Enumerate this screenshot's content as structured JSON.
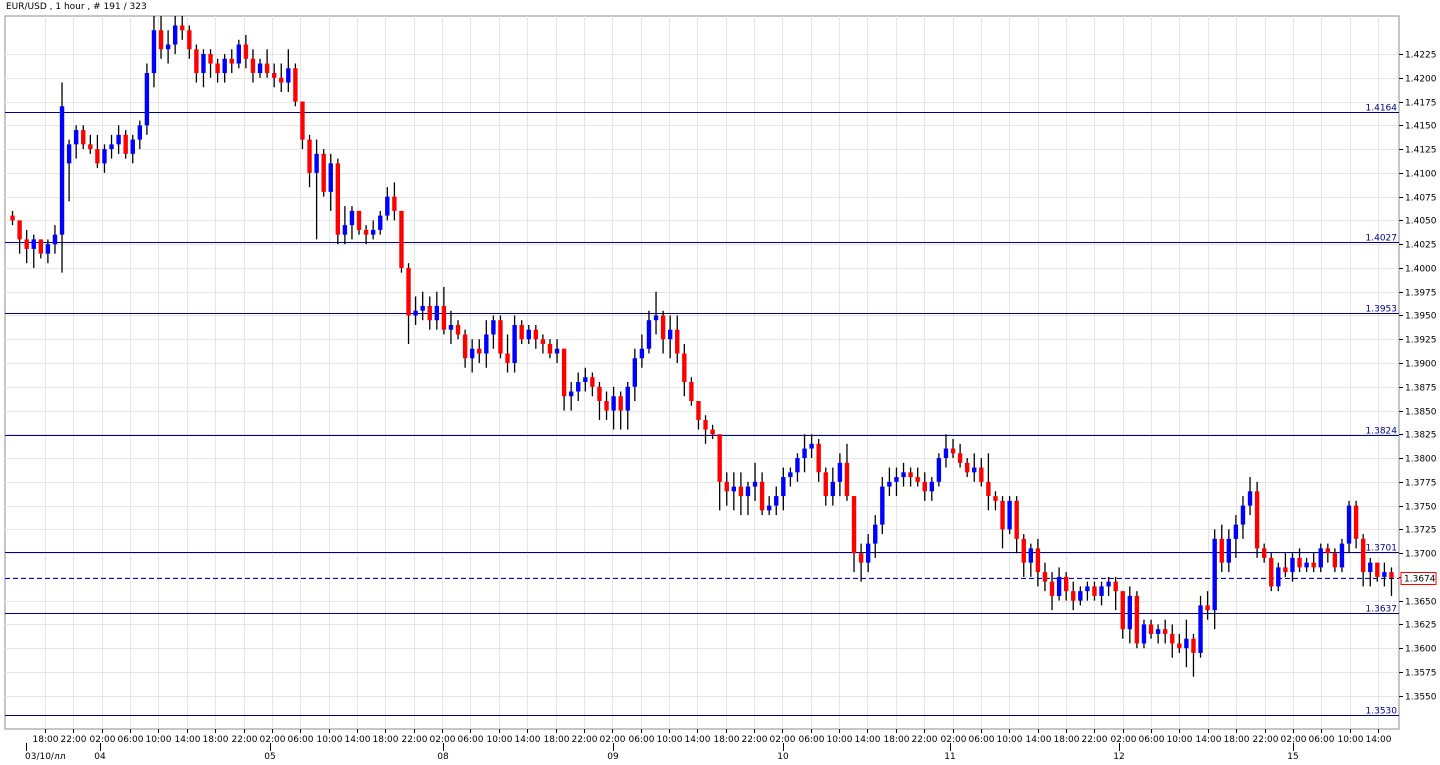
{
  "header": {
    "title": "EUR/USD , 1 hour , # 191 / 323"
  },
  "colors": {
    "background": "#ffffff",
    "grid": "#e6e6e6",
    "frame": "#8c8c8c",
    "bull": "#0000ff",
    "bear": "#ff0000",
    "wick": "#000000",
    "levels": "#00008b",
    "current_line": "#0000b4",
    "current_label_border": "#ff0000"
  },
  "chart_data": {
    "type": "candlestick",
    "symbol": "EUR/USD",
    "timeframe": "1 hour",
    "ylim": [
      1.3515,
      1.4265
    ],
    "y_ticks": [
      "1.4225",
      "1.4200",
      "1.4175",
      "1.4150",
      "1.4125",
      "1.4100",
      "1.4075",
      "1.4050",
      "1.4025",
      "1.4000",
      "1.3975",
      "1.3950",
      "1.3925",
      "1.3900",
      "1.3875",
      "1.3850",
      "1.3825",
      "1.3800",
      "1.3775",
      "1.3750",
      "1.3725",
      "1.3700",
      "1.3675",
      "1.3650",
      "1.3625",
      "1.3600",
      "1.3575",
      "1.3550"
    ],
    "x_time_labels": [
      "18:00",
      "22:00",
      "02:00",
      "06:00",
      "10:00",
      "14:00",
      "18:00",
      "22:00",
      "02:00",
      "06:00",
      "10:00",
      "14:00",
      "18:00",
      "22:00",
      "02:00",
      "06:00",
      "10:00",
      "14:00",
      "18:00",
      "22:00",
      "02:00",
      "06:00",
      "10:00",
      "14:00",
      "18:00",
      "22:00",
      "02:00",
      "06:00",
      "10:00",
      "14:00",
      "18:00",
      "22:00",
      "02:00",
      "06:00",
      "10:00",
      "14:00",
      "18:00",
      "22:00",
      "02:00",
      "06:00",
      "10:00",
      "14:00",
      "18:00",
      "22:00",
      "02:00",
      "06:00",
      "10:00",
      "14:00"
    ],
    "x_date_labels": [
      "03/10/лл",
      "04",
      "05",
      "08",
      "09",
      "10",
      "11",
      "12",
      "15"
    ],
    "horizontal_levels": [
      "1.4164",
      "1.4027",
      "1.3953",
      "1.3824",
      "1.3701",
      "1.3637",
      "1.3530"
    ],
    "current_price": "1.3674",
    "candles": [
      [
        1.4055,
        1.406,
        1.4045,
        1.405
      ],
      [
        1.405,
        1.405,
        1.4015,
        1.403
      ],
      [
        1.403,
        1.404,
        1.4005,
        1.402
      ],
      [
        1.402,
        1.4035,
        1.4,
        1.403
      ],
      [
        1.403,
        1.403,
        1.401,
        1.4015
      ],
      [
        1.4015,
        1.403,
        1.4005,
        1.4025
      ],
      [
        1.4025,
        1.4045,
        1.4015,
        1.4035
      ],
      [
        1.4035,
        1.4195,
        1.3995,
        1.417
      ],
      [
        1.411,
        1.4135,
        1.407,
        1.413
      ],
      [
        1.413,
        1.415,
        1.4115,
        1.4145
      ],
      [
        1.4145,
        1.415,
        1.4125,
        1.413
      ],
      [
        1.413,
        1.414,
        1.412,
        1.4125
      ],
      [
        1.4125,
        1.414,
        1.4105,
        1.411
      ],
      [
        1.411,
        1.413,
        1.41,
        1.4125
      ],
      [
        1.4125,
        1.414,
        1.4115,
        1.413
      ],
      [
        1.413,
        1.415,
        1.412,
        1.414
      ],
      [
        1.414,
        1.4145,
        1.4115,
        1.412
      ],
      [
        1.412,
        1.414,
        1.411,
        1.4135
      ],
      [
        1.4135,
        1.4155,
        1.4125,
        1.415
      ],
      [
        1.415,
        1.4215,
        1.414,
        1.4205
      ],
      [
        1.4205,
        1.4265,
        1.419,
        1.425
      ],
      [
        1.425,
        1.4265,
        1.422,
        1.423
      ],
      [
        1.423,
        1.425,
        1.4215,
        1.4235
      ],
      [
        1.4235,
        1.4265,
        1.4225,
        1.4255
      ],
      [
        1.4255,
        1.4265,
        1.424,
        1.425
      ],
      [
        1.425,
        1.4255,
        1.422,
        1.423
      ],
      [
        1.423,
        1.4235,
        1.4195,
        1.4205
      ],
      [
        1.4205,
        1.423,
        1.419,
        1.4225
      ],
      [
        1.4225,
        1.423,
        1.42,
        1.4215
      ],
      [
        1.4215,
        1.422,
        1.4195,
        1.4205
      ],
      [
        1.4205,
        1.4225,
        1.4195,
        1.422
      ],
      [
        1.422,
        1.423,
        1.4205,
        1.4215
      ],
      [
        1.4215,
        1.424,
        1.421,
        1.4235
      ],
      [
        1.4235,
        1.4245,
        1.421,
        1.422
      ],
      [
        1.422,
        1.423,
        1.4195,
        1.4205
      ],
      [
        1.4205,
        1.422,
        1.42,
        1.4215
      ],
      [
        1.4215,
        1.423,
        1.42,
        1.4205
      ],
      [
        1.4205,
        1.4215,
        1.419,
        1.42
      ],
      [
        1.42,
        1.4215,
        1.4185,
        1.4195
      ],
      [
        1.4195,
        1.423,
        1.4185,
        1.421
      ],
      [
        1.421,
        1.4215,
        1.417,
        1.4175
      ],
      [
        1.4175,
        1.4175,
        1.4125,
        1.4135
      ],
      [
        1.4135,
        1.414,
        1.4085,
        1.41
      ],
      [
        1.41,
        1.4135,
        1.403,
        1.412
      ],
      [
        1.412,
        1.4125,
        1.4075,
        1.408
      ],
      [
        1.408,
        1.412,
        1.406,
        1.411
      ],
      [
        1.411,
        1.4115,
        1.4025,
        1.4035
      ],
      [
        1.4035,
        1.4065,
        1.4025,
        1.4045
      ],
      [
        1.4045,
        1.4065,
        1.403,
        1.406
      ],
      [
        1.406,
        1.406,
        1.4035,
        1.404
      ],
      [
        1.404,
        1.4045,
        1.4025,
        1.4035
      ],
      [
        1.4035,
        1.405,
        1.403,
        1.404
      ],
      [
        1.404,
        1.406,
        1.4035,
        1.4055
      ],
      [
        1.4055,
        1.4085,
        1.405,
        1.4075
      ],
      [
        1.4075,
        1.409,
        1.405,
        1.406
      ],
      [
        1.406,
        1.406,
        1.3995,
        1.4
      ],
      [
        1.4,
        1.4005,
        1.392,
        1.395
      ],
      [
        1.395,
        1.397,
        1.394,
        1.3955
      ],
      [
        1.3955,
        1.3975,
        1.3945,
        1.396
      ],
      [
        1.396,
        1.397,
        1.3935,
        1.3945
      ],
      [
        1.3945,
        1.3975,
        1.3935,
        1.396
      ],
      [
        1.396,
        1.398,
        1.393,
        1.3935
      ],
      [
        1.3935,
        1.3955,
        1.392,
        1.394
      ],
      [
        1.394,
        1.3945,
        1.3925,
        1.393
      ],
      [
        1.393,
        1.3935,
        1.3895,
        1.3905
      ],
      [
        1.3905,
        1.3925,
        1.389,
        1.3915
      ],
      [
        1.3915,
        1.3925,
        1.39,
        1.391
      ],
      [
        1.391,
        1.3945,
        1.3895,
        1.393
      ],
      [
        1.393,
        1.395,
        1.3915,
        1.3945
      ],
      [
        1.3945,
        1.395,
        1.3905,
        1.391
      ],
      [
        1.391,
        1.393,
        1.389,
        1.39
      ],
      [
        1.39,
        1.395,
        1.389,
        1.394
      ],
      [
        1.394,
        1.3945,
        1.392,
        1.3925
      ],
      [
        1.3925,
        1.394,
        1.392,
        1.3935
      ],
      [
        1.3935,
        1.394,
        1.3915,
        1.3925
      ],
      [
        1.3925,
        1.393,
        1.391,
        1.392
      ],
      [
        1.392,
        1.3925,
        1.3905,
        1.391
      ],
      [
        1.391,
        1.3925,
        1.39,
        1.3915
      ],
      [
        1.3915,
        1.3915,
        1.385,
        1.3865
      ],
      [
        1.3865,
        1.388,
        1.385,
        1.387
      ],
      [
        1.387,
        1.389,
        1.386,
        1.388
      ],
      [
        1.388,
        1.3895,
        1.387,
        1.3885
      ],
      [
        1.3885,
        1.389,
        1.3865,
        1.3875
      ],
      [
        1.3875,
        1.388,
        1.384,
        1.386
      ],
      [
        1.386,
        1.387,
        1.384,
        1.385
      ],
      [
        1.385,
        1.3875,
        1.383,
        1.3865
      ],
      [
        1.3865,
        1.387,
        1.383,
        1.385
      ],
      [
        1.385,
        1.388,
        1.383,
        1.3875
      ],
      [
        1.3875,
        1.3915,
        1.386,
        1.3905
      ],
      [
        1.3905,
        1.393,
        1.3895,
        1.3915
      ],
      [
        1.3915,
        1.3955,
        1.391,
        1.3945
      ],
      [
        1.3945,
        1.3975,
        1.393,
        1.395
      ],
      [
        1.395,
        1.3955,
        1.391,
        1.3925
      ],
      [
        1.3925,
        1.395,
        1.3905,
        1.3935
      ],
      [
        1.3935,
        1.395,
        1.39,
        1.391
      ],
      [
        1.391,
        1.392,
        1.3865,
        1.388
      ],
      [
        1.388,
        1.3885,
        1.3855,
        1.386
      ],
      [
        1.386,
        1.386,
        1.383,
        1.384
      ],
      [
        1.384,
        1.3845,
        1.3815,
        1.383
      ],
      [
        1.383,
        1.3835,
        1.382,
        1.3825
      ],
      [
        1.3825,
        1.3825,
        1.3745,
        1.3775
      ],
      [
        1.3775,
        1.3785,
        1.375,
        1.3765
      ],
      [
        1.3765,
        1.3785,
        1.3745,
        1.377
      ],
      [
        1.377,
        1.3785,
        1.374,
        1.376
      ],
      [
        1.376,
        1.3775,
        1.374,
        1.377
      ],
      [
        1.377,
        1.3795,
        1.3755,
        1.3775
      ],
      [
        1.3775,
        1.3785,
        1.374,
        1.3745
      ],
      [
        1.3745,
        1.376,
        1.374,
        1.375
      ],
      [
        1.375,
        1.377,
        1.374,
        1.376
      ],
      [
        1.376,
        1.379,
        1.3745,
        1.378
      ],
      [
        1.378,
        1.379,
        1.377,
        1.3785
      ],
      [
        1.3785,
        1.3805,
        1.3775,
        1.38
      ],
      [
        1.38,
        1.3825,
        1.3785,
        1.381
      ],
      [
        1.381,
        1.3825,
        1.38,
        1.3815
      ],
      [
        1.3815,
        1.382,
        1.3775,
        1.3785
      ],
      [
        1.3785,
        1.379,
        1.375,
        1.376
      ],
      [
        1.376,
        1.379,
        1.375,
        1.3775
      ],
      [
        1.3775,
        1.3805,
        1.376,
        1.3795
      ],
      [
        1.3795,
        1.3815,
        1.3755,
        1.376
      ],
      [
        1.376,
        1.376,
        1.368,
        1.37
      ],
      [
        1.37,
        1.371,
        1.367,
        1.369
      ],
      [
        1.369,
        1.372,
        1.368,
        1.371
      ],
      [
        1.371,
        1.374,
        1.3695,
        1.373
      ],
      [
        1.373,
        1.378,
        1.372,
        1.377
      ],
      [
        1.377,
        1.379,
        1.376,
        1.3775
      ],
      [
        1.3775,
        1.379,
        1.376,
        1.378
      ],
      [
        1.378,
        1.3795,
        1.377,
        1.3785
      ],
      [
        1.3785,
        1.379,
        1.377,
        1.378
      ],
      [
        1.378,
        1.379,
        1.377,
        1.3775
      ],
      [
        1.3775,
        1.3785,
        1.3755,
        1.3765
      ],
      [
        1.3765,
        1.378,
        1.3755,
        1.3775
      ],
      [
        1.3775,
        1.3805,
        1.377,
        1.38
      ],
      [
        1.38,
        1.3825,
        1.379,
        1.381
      ],
      [
        1.381,
        1.382,
        1.38,
        1.3805
      ],
      [
        1.3805,
        1.3815,
        1.379,
        1.3795
      ],
      [
        1.3795,
        1.38,
        1.378,
        1.3785
      ],
      [
        1.3785,
        1.3805,
        1.3775,
        1.379
      ],
      [
        1.379,
        1.38,
        1.377,
        1.3775
      ],
      [
        1.3775,
        1.3805,
        1.3745,
        1.376
      ],
      [
        1.376,
        1.3765,
        1.3745,
        1.3755
      ],
      [
        1.3755,
        1.376,
        1.3705,
        1.3725
      ],
      [
        1.3725,
        1.376,
        1.372,
        1.3755
      ],
      [
        1.3755,
        1.376,
        1.37,
        1.3715
      ],
      [
        1.3715,
        1.372,
        1.3675,
        1.369
      ],
      [
        1.369,
        1.371,
        1.3675,
        1.3705
      ],
      [
        1.3705,
        1.3715,
        1.3665,
        1.368
      ],
      [
        1.368,
        1.369,
        1.366,
        1.367
      ],
      [
        1.367,
        1.368,
        1.364,
        1.3655
      ],
      [
        1.3655,
        1.3685,
        1.365,
        1.3675
      ],
      [
        1.3675,
        1.368,
        1.365,
        1.366
      ],
      [
        1.366,
        1.367,
        1.364,
        1.365
      ],
      [
        1.365,
        1.3665,
        1.3645,
        1.366
      ],
      [
        1.366,
        1.367,
        1.365,
        1.3665
      ],
      [
        1.3665,
        1.367,
        1.365,
        1.3655
      ],
      [
        1.3655,
        1.367,
        1.3645,
        1.3665
      ],
      [
        1.3665,
        1.3675,
        1.3655,
        1.367
      ],
      [
        1.367,
        1.3675,
        1.364,
        1.366
      ],
      [
        1.366,
        1.366,
        1.361,
        1.362
      ],
      [
        1.362,
        1.3665,
        1.3605,
        1.3655
      ],
      [
        1.3655,
        1.366,
        1.36,
        1.3605
      ],
      [
        1.3605,
        1.363,
        1.36,
        1.3625
      ],
      [
        1.3625,
        1.363,
        1.361,
        1.3615
      ],
      [
        1.3615,
        1.3625,
        1.3605,
        1.362
      ],
      [
        1.362,
        1.363,
        1.3605,
        1.3615
      ],
      [
        1.3615,
        1.3625,
        1.359,
        1.3605
      ],
      [
        1.3605,
        1.3615,
        1.3595,
        1.36
      ],
      [
        1.36,
        1.363,
        1.358,
        1.361
      ],
      [
        1.361,
        1.3615,
        1.357,
        1.3595
      ],
      [
        1.3595,
        1.3655,
        1.359,
        1.3645
      ],
      [
        1.3645,
        1.366,
        1.363,
        1.364
      ],
      [
        1.364,
        1.3725,
        1.362,
        1.3715
      ],
      [
        1.3715,
        1.373,
        1.368,
        1.369
      ],
      [
        1.369,
        1.3725,
        1.368,
        1.3715
      ],
      [
        1.3715,
        1.374,
        1.3695,
        1.373
      ],
      [
        1.373,
        1.376,
        1.3715,
        1.375
      ],
      [
        1.375,
        1.378,
        1.374,
        1.3765
      ],
      [
        1.3765,
        1.3775,
        1.3695,
        1.3705
      ],
      [
        1.3705,
        1.371,
        1.369,
        1.3695
      ],
      [
        1.3695,
        1.37,
        1.366,
        1.3665
      ],
      [
        1.3665,
        1.369,
        1.366,
        1.3685
      ],
      [
        1.3685,
        1.37,
        1.3675,
        1.368
      ],
      [
        1.368,
        1.37,
        1.367,
        1.3695
      ],
      [
        1.3695,
        1.3705,
        1.368,
        1.3685
      ],
      [
        1.3685,
        1.3695,
        1.368,
        1.369
      ],
      [
        1.369,
        1.37,
        1.368,
        1.3685
      ],
      [
        1.3685,
        1.371,
        1.368,
        1.3705
      ],
      [
        1.3705,
        1.371,
        1.369,
        1.37
      ],
      [
        1.37,
        1.3705,
        1.368,
        1.3685
      ],
      [
        1.3685,
        1.3715,
        1.368,
        1.371
      ],
      [
        1.371,
        1.3755,
        1.37,
        1.375
      ],
      [
        1.375,
        1.3755,
        1.3705,
        1.3715
      ],
      [
        1.3715,
        1.372,
        1.3665,
        1.368
      ],
      [
        1.368,
        1.3695,
        1.3665,
        1.369
      ],
      [
        1.369,
        1.369,
        1.367,
        1.3675
      ],
      [
        1.3675,
        1.369,
        1.3665,
        1.368
      ],
      [
        1.368,
        1.3685,
        1.3655,
        1.3674
      ]
    ]
  }
}
